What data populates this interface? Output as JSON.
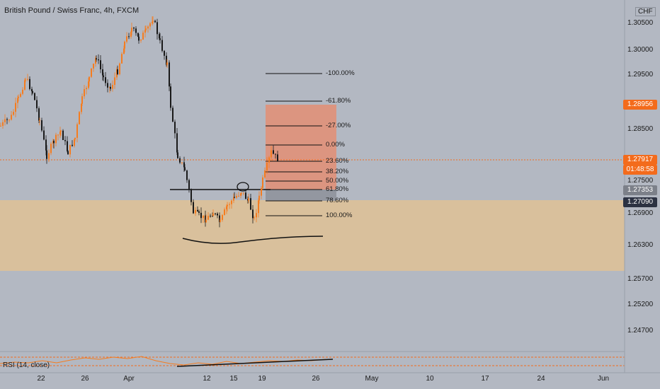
{
  "header": {
    "title": "British Pound / Swiss Franc, 4h, FXCM"
  },
  "rsi": {
    "label": "RSI (14, close)"
  },
  "price_axis": {
    "currency": "CHF",
    "labels": [
      "1.30500",
      "1.30000",
      "1.29500",
      "1.28500",
      "1.27500",
      "1.26900",
      "1.26300",
      "1.25700",
      "1.25200",
      "1.24700"
    ]
  },
  "price_tags": {
    "target": "1.28956",
    "current": "1.27917",
    "countdown": "01:48:58",
    "entry": "1.27353",
    "stop": "1.27090"
  },
  "time_axis": {
    "labels": [
      "22",
      "26",
      "Apr",
      "12",
      "15",
      "19",
      "26",
      "May",
      "10",
      "17",
      "24",
      "Jun"
    ]
  },
  "fibonacci": {
    "levels": [
      "-100.00%",
      "-61.80%",
      "-27.00%",
      "0.00%",
      "23.60%",
      "38.20%",
      "50.00%",
      "61.80%",
      "78.60%",
      "100.00%"
    ]
  },
  "colors": {
    "background": "#b3b8c2",
    "up_candle": "#f57c1f",
    "down_candle": "#1a1a1a",
    "support_zone": "#e6c38f",
    "target_zone": "#e98a6a",
    "stop_zone": "#8f949c",
    "current_price_tag": "#f36b1c",
    "entry_tag": "#7c8089",
    "stop_tag": "#2c3242"
  }
}
